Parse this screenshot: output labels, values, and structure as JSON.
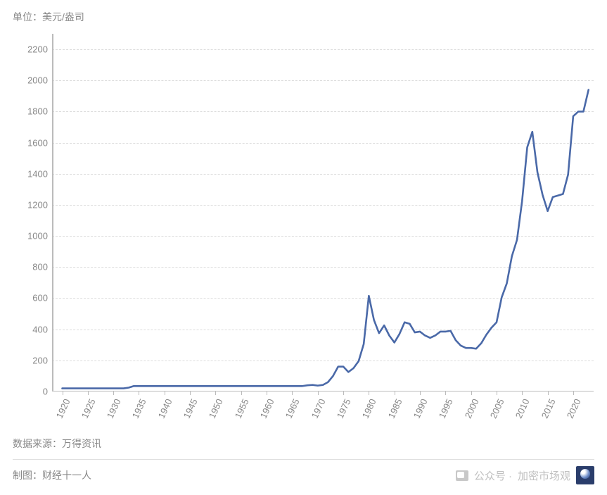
{
  "chart": {
    "type": "line",
    "unit_label": "单位：美元/盎司",
    "line_color": "#4a69a8",
    "line_width": 2.6,
    "grid_color": "#dcdcdc",
    "axis_color": "#bbbbbb",
    "label_color": "#888888",
    "background_color": "#ffffff",
    "label_fontsize": 13,
    "ylim": [
      0,
      2300
    ],
    "ytick_step": 200,
    "y_ticks": [
      0,
      200,
      400,
      600,
      800,
      1000,
      1200,
      1400,
      1600,
      1800,
      2000,
      2200
    ],
    "xlim": [
      1918,
      2024
    ],
    "x_ticks": [
      1920,
      1925,
      1930,
      1935,
      1940,
      1945,
      1950,
      1955,
      1960,
      1965,
      1970,
      1975,
      1980,
      1985,
      1990,
      1995,
      2000,
      2005,
      2010,
      2015,
      2020
    ],
    "x_tick_rotation": -65,
    "series": [
      {
        "x": 1920,
        "y": 20
      },
      {
        "x": 1921,
        "y": 20
      },
      {
        "x": 1922,
        "y": 20
      },
      {
        "x": 1923,
        "y": 20
      },
      {
        "x": 1924,
        "y": 20
      },
      {
        "x": 1925,
        "y": 20
      },
      {
        "x": 1926,
        "y": 20
      },
      {
        "x": 1927,
        "y": 20
      },
      {
        "x": 1928,
        "y": 20
      },
      {
        "x": 1929,
        "y": 20
      },
      {
        "x": 1930,
        "y": 20
      },
      {
        "x": 1931,
        "y": 20
      },
      {
        "x": 1932,
        "y": 20
      },
      {
        "x": 1933,
        "y": 25
      },
      {
        "x": 1934,
        "y": 35
      },
      {
        "x": 1935,
        "y": 35
      },
      {
        "x": 1936,
        "y": 35
      },
      {
        "x": 1937,
        "y": 35
      },
      {
        "x": 1938,
        "y": 35
      },
      {
        "x": 1939,
        "y": 35
      },
      {
        "x": 1940,
        "y": 35
      },
      {
        "x": 1941,
        "y": 35
      },
      {
        "x": 1942,
        "y": 35
      },
      {
        "x": 1943,
        "y": 35
      },
      {
        "x": 1944,
        "y": 35
      },
      {
        "x": 1945,
        "y": 35
      },
      {
        "x": 1946,
        "y": 35
      },
      {
        "x": 1947,
        "y": 35
      },
      {
        "x": 1948,
        "y": 35
      },
      {
        "x": 1949,
        "y": 35
      },
      {
        "x": 1950,
        "y": 35
      },
      {
        "x": 1951,
        "y": 35
      },
      {
        "x": 1952,
        "y": 35
      },
      {
        "x": 1953,
        "y": 35
      },
      {
        "x": 1954,
        "y": 35
      },
      {
        "x": 1955,
        "y": 35
      },
      {
        "x": 1956,
        "y": 35
      },
      {
        "x": 1957,
        "y": 35
      },
      {
        "x": 1958,
        "y": 35
      },
      {
        "x": 1959,
        "y": 35
      },
      {
        "x": 1960,
        "y": 35
      },
      {
        "x": 1961,
        "y": 35
      },
      {
        "x": 1962,
        "y": 35
      },
      {
        "x": 1963,
        "y": 35
      },
      {
        "x": 1964,
        "y": 35
      },
      {
        "x": 1965,
        "y": 35
      },
      {
        "x": 1966,
        "y": 35
      },
      {
        "x": 1967,
        "y": 35
      },
      {
        "x": 1968,
        "y": 40
      },
      {
        "x": 1969,
        "y": 42
      },
      {
        "x": 1970,
        "y": 38
      },
      {
        "x": 1971,
        "y": 42
      },
      {
        "x": 1972,
        "y": 60
      },
      {
        "x": 1973,
        "y": 100
      },
      {
        "x": 1974,
        "y": 160
      },
      {
        "x": 1975,
        "y": 160
      },
      {
        "x": 1976,
        "y": 125
      },
      {
        "x": 1977,
        "y": 150
      },
      {
        "x": 1978,
        "y": 195
      },
      {
        "x": 1979,
        "y": 305
      },
      {
        "x": 1980,
        "y": 615
      },
      {
        "x": 1981,
        "y": 460
      },
      {
        "x": 1982,
        "y": 375
      },
      {
        "x": 1983,
        "y": 425
      },
      {
        "x": 1984,
        "y": 360
      },
      {
        "x": 1985,
        "y": 315
      },
      {
        "x": 1986,
        "y": 370
      },
      {
        "x": 1987,
        "y": 445
      },
      {
        "x": 1988,
        "y": 435
      },
      {
        "x": 1989,
        "y": 380
      },
      {
        "x": 1990,
        "y": 385
      },
      {
        "x": 1991,
        "y": 360
      },
      {
        "x": 1992,
        "y": 345
      },
      {
        "x": 1993,
        "y": 360
      },
      {
        "x": 1994,
        "y": 385
      },
      {
        "x": 1995,
        "y": 385
      },
      {
        "x": 1996,
        "y": 390
      },
      {
        "x": 1997,
        "y": 330
      },
      {
        "x": 1998,
        "y": 295
      },
      {
        "x": 1999,
        "y": 280
      },
      {
        "x": 2000,
        "y": 280
      },
      {
        "x": 2001,
        "y": 275
      },
      {
        "x": 2002,
        "y": 310
      },
      {
        "x": 2003,
        "y": 365
      },
      {
        "x": 2004,
        "y": 410
      },
      {
        "x": 2005,
        "y": 445
      },
      {
        "x": 2006,
        "y": 605
      },
      {
        "x": 2007,
        "y": 695
      },
      {
        "x": 2008,
        "y": 870
      },
      {
        "x": 2009,
        "y": 975
      },
      {
        "x": 2010,
        "y": 1225
      },
      {
        "x": 2011,
        "y": 1570
      },
      {
        "x": 2012,
        "y": 1670
      },
      {
        "x": 2013,
        "y": 1410
      },
      {
        "x": 2014,
        "y": 1265
      },
      {
        "x": 2015,
        "y": 1160
      },
      {
        "x": 2016,
        "y": 1250
      },
      {
        "x": 2017,
        "y": 1260
      },
      {
        "x": 2018,
        "y": 1270
      },
      {
        "x": 2019,
        "y": 1395
      },
      {
        "x": 2020,
        "y": 1770
      },
      {
        "x": 2021,
        "y": 1800
      },
      {
        "x": 2022,
        "y": 1800
      },
      {
        "x": 2023,
        "y": 1940
      }
    ]
  },
  "footer": {
    "source_label": "数据来源：万得资讯",
    "credit_label": "制图：财经十一人",
    "watermark_prefix": "公众号 · ",
    "watermark_name": "加密市场观"
  }
}
